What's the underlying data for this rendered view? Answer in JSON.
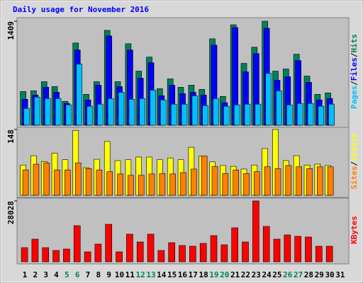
{
  "chart_data": [
    {
      "type": "bar",
      "title": "Daily usage for November 2016",
      "legend_separator": "/",
      "ylim": [
        0,
        1409
      ],
      "yticks": [
        1409
      ],
      "series": [
        {
          "name": "Hits",
          "color": "#00805c",
          "values": [
            457,
            467,
            590,
            524,
            324,
            1114,
            419,
            590,
            1285,
            590,
            1104,
            733,
            923,
            495,
            628,
            514,
            543,
            486,
            1171,
            390,
            1361,
            838,
            1057,
            1409,
            733,
            762,
            962,
            666,
            419,
            438,
            null
          ]
        },
        {
          "name": "Files",
          "color": "#0000ff",
          "values": [
            352,
            409,
            514,
            447,
            295,
            1019,
            343,
            543,
            1209,
            524,
            1019,
            638,
            847,
            400,
            543,
            428,
            447,
            409,
            1085,
            305,
            1323,
            723,
            971,
            1314,
            609,
            657,
            876,
            581,
            343,
            362,
            null
          ]
        },
        {
          "name": "Pages",
          "color": "#00c0ff",
          "values": [
            228,
            381,
            362,
            362,
            276,
            828,
            257,
            286,
            362,
            447,
            352,
            362,
            476,
            343,
            286,
            286,
            400,
            267,
            362,
            257,
            276,
            286,
            286,
            704,
            466,
            276,
            295,
            295,
            257,
            286,
            null
          ]
        }
      ]
    },
    {
      "type": "bar",
      "legend_separator": "/",
      "ylim": [
        0,
        148
      ],
      "yticks": [
        148
      ],
      "series": [
        {
          "name": "Visits",
          "color": "#ffff00",
          "values": [
            68,
            89,
            76,
            95,
            80,
            146,
            62,
            81,
            121,
            78,
            80,
            86,
            86,
            80,
            84,
            80,
            108,
            88,
            75,
            67,
            65,
            59,
            68,
            105,
            148,
            78,
            89,
            68,
            70,
            67,
            null
          ]
        },
        {
          "name": "Sites",
          "color": "#ff8000",
          "values": [
            57,
            70,
            73,
            57,
            57,
            73,
            60,
            57,
            53,
            48,
            45,
            45,
            48,
            49,
            48,
            51,
            59,
            88,
            65,
            49,
            57,
            49,
            53,
            64,
            60,
            67,
            64,
            60,
            64,
            64,
            null
          ]
        }
      ]
    },
    {
      "type": "bar",
      "ylim": [
        0,
        28028
      ],
      "yticks": [
        28028
      ],
      "categories": [
        "1",
        "2",
        "3",
        "4",
        "5",
        "6",
        "7",
        "8",
        "9",
        "10",
        "11",
        "12",
        "13",
        "14",
        "15",
        "16",
        "17",
        "18",
        "19",
        "20",
        "21",
        "22",
        "23",
        "24",
        "25",
        "26",
        "27",
        "28",
        "29",
        "30",
        "31"
      ],
      "category_colors": [
        "#000000",
        "#000000",
        "#000000",
        "#000000",
        "#00805c",
        "#00805c",
        "#000000",
        "#000000",
        "#000000",
        "#000000",
        "#000000",
        "#00805c",
        "#00805c",
        "#000000",
        "#000000",
        "#000000",
        "#000000",
        "#000000",
        "#00805c",
        "#00805c",
        "#000000",
        "#000000",
        "#000000",
        "#000000",
        "#000000",
        "#00805c",
        "#00805c",
        "#000000",
        "#000000",
        "#000000",
        "#000000"
      ],
      "series": [
        {
          "name": "KBytes",
          "color": "#ff0000",
          "values": [
            6518,
            10429,
            6518,
            5214,
            5866,
            16621,
            4563,
            8148,
            17273,
            4563,
            12710,
            9125,
            12710,
            5214,
            8799,
            7496,
            7170,
            8473,
            12058,
            7822,
            15643,
            9125,
            28028,
            16295,
            10429,
            12384,
            11732,
            11407,
            7170,
            7170,
            null
          ]
        }
      ]
    }
  ]
}
